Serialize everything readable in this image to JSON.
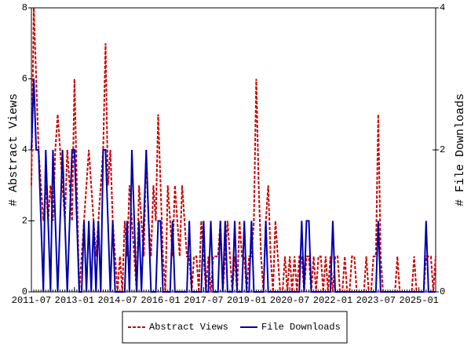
{
  "chart_data": {
    "type": "line",
    "x": [
      "2011-07",
      "2011-08",
      "2011-09",
      "2011-10",
      "2011-11",
      "2011-12",
      "2012-01",
      "2012-02",
      "2012-03",
      "2012-04",
      "2012-05",
      "2012-06",
      "2012-07",
      "2012-08",
      "2012-09",
      "2012-10",
      "2012-11",
      "2012-12",
      "2013-01",
      "2013-02",
      "2013-03",
      "2013-04",
      "2013-05",
      "2013-06",
      "2013-07",
      "2013-08",
      "2013-09",
      "2013-10",
      "2013-11",
      "2013-12",
      "2014-01",
      "2014-02",
      "2014-03",
      "2014-04",
      "2014-05",
      "2014-06",
      "2014-07",
      "2014-08",
      "2014-09",
      "2014-10",
      "2014-11",
      "2014-12",
      "2015-01",
      "2015-02",
      "2015-03",
      "2015-04",
      "2015-05",
      "2015-06",
      "2015-07",
      "2015-08",
      "2015-09",
      "2015-10",
      "2015-11",
      "2015-12",
      "2016-01",
      "2016-02",
      "2016-03",
      "2016-04",
      "2016-05",
      "2016-06",
      "2016-07",
      "2016-08",
      "2016-09",
      "2016-10",
      "2016-11",
      "2016-12",
      "2017-01",
      "2017-02",
      "2017-03",
      "2017-04",
      "2017-05",
      "2017-06",
      "2017-07",
      "2017-08",
      "2017-09",
      "2017-10",
      "2017-11",
      "2017-12",
      "2018-01",
      "2018-02",
      "2018-03",
      "2018-04",
      "2018-05",
      "2018-06",
      "2018-07",
      "2018-08",
      "2018-09",
      "2018-10",
      "2018-11",
      "2018-12",
      "2019-01",
      "2019-02",
      "2019-03",
      "2019-04",
      "2019-05",
      "2019-06",
      "2019-07",
      "2019-08",
      "2019-09",
      "2019-10",
      "2019-11",
      "2019-12",
      "2020-01",
      "2020-02",
      "2020-03",
      "2020-04",
      "2020-05",
      "2020-06",
      "2020-07",
      "2020-08",
      "2020-09",
      "2020-10",
      "2020-11",
      "2020-12",
      "2021-01",
      "2021-02",
      "2021-03",
      "2021-04",
      "2021-05",
      "2021-06",
      "2021-07",
      "2021-08",
      "2021-09",
      "2021-10",
      "2021-11",
      "2021-12",
      "2022-01",
      "2022-02",
      "2022-03",
      "2022-04",
      "2022-05",
      "2022-06",
      "2022-07",
      "2022-08",
      "2022-09",
      "2022-10",
      "2022-11",
      "2022-12",
      "2023-01",
      "2023-02",
      "2023-03",
      "2023-04",
      "2023-05",
      "2023-06",
      "2023-07",
      "2023-08",
      "2023-09",
      "2023-10",
      "2023-11",
      "2023-12",
      "2024-01",
      "2024-02",
      "2024-03",
      "2024-04",
      "2024-05",
      "2024-06",
      "2024-07",
      "2024-08",
      "2024-09",
      "2024-10",
      "2024-11",
      "2024-12",
      "2025-01",
      "2025-02",
      "2025-03",
      "2025-04",
      "2025-05",
      "2025-06",
      "2025-07",
      "2025-08"
    ],
    "xticks": [
      "2011-07",
      "2013-01",
      "2014-07",
      "2016-01",
      "2017-07",
      "2019-01",
      "2020-07",
      "2022-01",
      "2023-07",
      "2025-01"
    ],
    "ylabel": "# Abstract Views",
    "y2label": "# File Downloads",
    "ylim": [
      0,
      8
    ],
    "yticks": [
      0,
      2,
      4,
      6,
      8
    ],
    "y2lim": [
      0,
      4
    ],
    "y2ticks": [
      0,
      2,
      4
    ],
    "series": [
      {
        "name": "Abstract Views",
        "color": "#cc0000",
        "dashed": true,
        "values": [
          3,
          8,
          6,
          4,
          3,
          2,
          3,
          2,
          3,
          2,
          4,
          5,
          4,
          3,
          2,
          4,
          3,
          2,
          6,
          3,
          0,
          1,
          2,
          3,
          4,
          3,
          2,
          1,
          2,
          3,
          4,
          7,
          3,
          4,
          2,
          1,
          0,
          1,
          0,
          2,
          1,
          3,
          2,
          1,
          0,
          3,
          2,
          1,
          4,
          2,
          1,
          3,
          2,
          5,
          3,
          1,
          0,
          3,
          2,
          1,
          3,
          2,
          1,
          3,
          2,
          1,
          1,
          0,
          1,
          1,
          0,
          2,
          1,
          0,
          1,
          0,
          1,
          1,
          1,
          2,
          0,
          1,
          2,
          1,
          0,
          1,
          0,
          2,
          1,
          1,
          0,
          1,
          1,
          2,
          6,
          3,
          1,
          0,
          2,
          3,
          1,
          0,
          2,
          1,
          0,
          0,
          1,
          0,
          1,
          0,
          1,
          0,
          1,
          1,
          0,
          1,
          1,
          0,
          1,
          0,
          1,
          1,
          0,
          1,
          0,
          1,
          0,
          1,
          1,
          0,
          0,
          1,
          0,
          0,
          1,
          1,
          0,
          0,
          0,
          0,
          1,
          0,
          0,
          1,
          1,
          5,
          1,
          0,
          0,
          0,
          0,
          0,
          0,
          1,
          0,
          0,
          0,
          0,
          0,
          0,
          1,
          0,
          0,
          0,
          0,
          1,
          1,
          1,
          0,
          1
        ]
      },
      {
        "name": "File Downloads",
        "color": "#0000aa",
        "axis": "y2",
        "values": [
          2,
          3,
          2,
          2,
          1,
          0,
          2,
          1,
          0,
          2,
          1,
          0,
          1,
          2,
          1,
          0,
          1,
          2,
          2,
          1,
          0,
          0,
          1,
          0,
          1,
          0,
          1,
          0,
          1,
          0,
          2,
          2,
          1,
          0,
          1,
          0,
          0,
          0,
          0,
          0,
          1,
          0,
          2,
          1,
          0,
          1,
          0,
          1,
          2,
          1,
          0,
          0,
          0,
          1,
          1,
          0,
          0,
          0,
          0,
          1,
          0,
          0,
          0,
          0,
          0,
          0,
          1,
          0,
          0,
          0,
          0,
          0,
          1,
          0,
          0,
          1,
          0,
          0,
          0,
          1,
          0,
          1,
          0,
          0,
          0,
          1,
          0,
          0,
          0,
          1,
          0,
          0,
          1,
          0,
          0,
          0,
          0,
          0,
          1,
          0,
          0,
          0,
          0,
          0,
          0,
          0,
          0,
          0,
          0,
          0,
          0,
          0,
          0,
          1,
          0,
          1,
          1,
          0,
          0,
          0,
          0,
          0,
          0,
          0,
          0,
          0,
          1,
          0,
          0,
          0,
          0,
          0,
          0,
          0,
          0,
          0,
          0,
          0,
          0,
          0,
          0,
          0,
          0,
          0,
          0,
          1,
          0,
          0,
          0,
          0,
          0,
          0,
          0,
          0,
          0,
          0,
          0,
          0,
          0,
          0,
          0,
          0,
          0,
          0,
          0,
          1,
          0,
          0,
          0,
          0
        ]
      }
    ]
  }
}
